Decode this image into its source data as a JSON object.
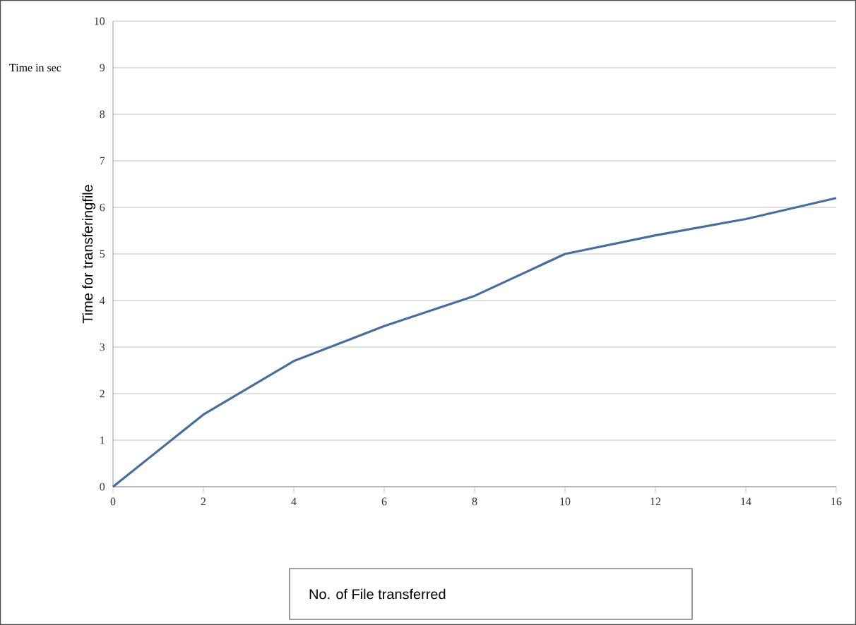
{
  "chart_data": {
    "type": "line",
    "ylabel": "Time for transferingfile",
    "annotations": [
      "Time in sec",
      "No. of File transferred"
    ],
    "x": [
      0,
      2,
      4,
      6,
      8,
      10,
      12,
      14,
      16
    ],
    "series": [
      {
        "color": "#4a6e9a",
        "values": [
          0,
          1.55,
          2.7,
          3.45,
          4.1,
          5.0,
          5.4,
          5.75,
          6.2
        ]
      }
    ],
    "xlim": [
      0,
      16
    ],
    "xticks": [
      0,
      2,
      4,
      6,
      8,
      10,
      12,
      14,
      16
    ],
    "ylim": [
      0,
      10
    ],
    "yticks": [
      0,
      1,
      2,
      3,
      4,
      5,
      6,
      7,
      8,
      9,
      10
    ],
    "grid": "y",
    "marker": "none",
    "line_style": "solid"
  }
}
